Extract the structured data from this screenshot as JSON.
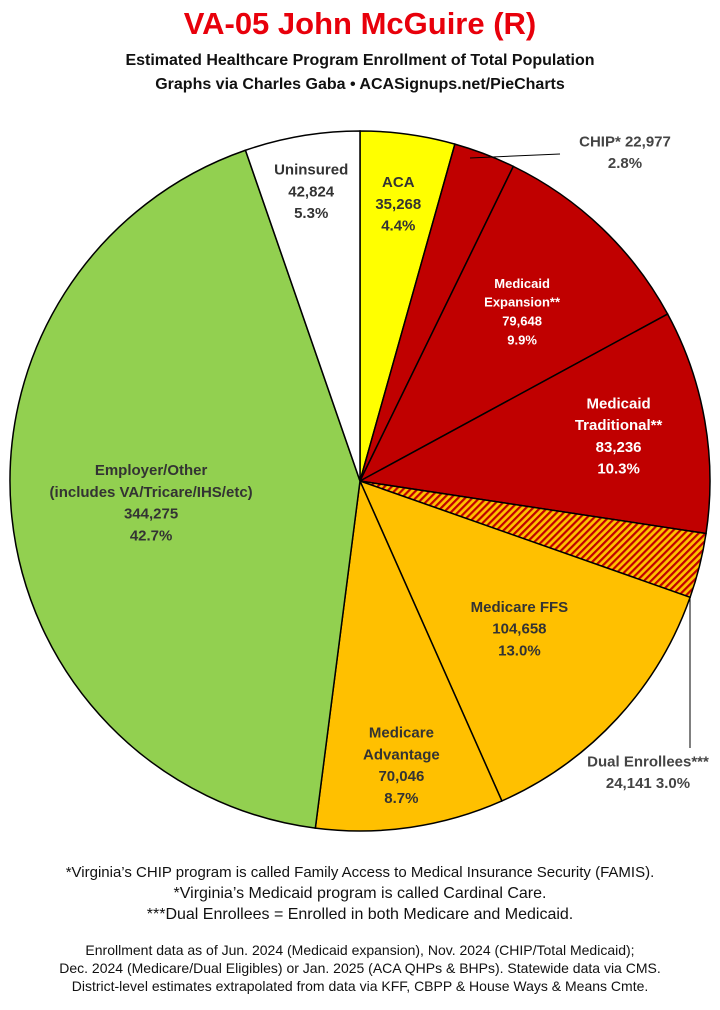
{
  "title": "VA-05 John McGuire (R)",
  "subtitle_line1": "Estimated Healthcare Program Enrollment of Total Population",
  "subtitle_line2": "Graphs via Charles Gaba  •  ACASignups.net/PieCharts",
  "chart_data": {
    "type": "pie",
    "slices": [
      {
        "label": "ACA",
        "value": 35268,
        "value_text": "35,268",
        "percent": "4.4%",
        "color": "#ffff00"
      },
      {
        "label": "CHIP*",
        "value": 22977,
        "value_text": "22,977",
        "percent": "2.8%",
        "color": "#c00000"
      },
      {
        "label": "Medicaid Expansion**",
        "label_lines": [
          "Medicaid",
          "Expansion**"
        ],
        "value": 79648,
        "value_text": "79,648",
        "percent": "9.9%",
        "color": "#c00000"
      },
      {
        "label": "Medicaid Traditional**",
        "label_lines": [
          "Medicaid",
          "Traditional**"
        ],
        "value": 83236,
        "value_text": "83,236",
        "percent": "10.3%",
        "color": "#c00000"
      },
      {
        "label": "Dual Enrollees***",
        "value": 24141,
        "value_text": "24,141",
        "percent": "3.0%",
        "color": "hatched"
      },
      {
        "label": "Medicare FFS",
        "value": 104658,
        "value_text": "104,658",
        "percent": "13.0%",
        "color": "#ffc000"
      },
      {
        "label": "Medicare Advantage",
        "label_lines": [
          "Medicare",
          "Advantage"
        ],
        "value": 70046,
        "value_text": "70,046",
        "percent": "8.7%",
        "color": "#ffc000"
      },
      {
        "label": "Employer/Other (includes VA/Tricare/IHS/etc)",
        "label_lines": [
          "Employer/Other",
          "(includes VA/Tricare/IHS/etc)"
        ],
        "value": 344275,
        "value_text": "344,275",
        "percent": "42.7%",
        "color": "#92d050"
      },
      {
        "label": "Uninsured",
        "value": 42824,
        "value_text": "42,824",
        "percent": "5.3%",
        "color": "#ffffff"
      }
    ]
  },
  "footnotes": {
    "chip": "*Virginia’s CHIP program is called Family Access to Medical Insurance Security (FAMIS).",
    "medicaid": "*Virginia’s Medicaid program is called Cardinal Care.",
    "dual": "***Dual Enrollees = Enrolled in both Medicare and Medicaid.",
    "source_line1": "Enrollment data as of Jun. 2024 (Medicaid expansion), Nov. 2024 (CHIP/Total Medicaid);",
    "source_line2": "Dec. 2024 (Medicare/Dual Eligibles) or Jan. 2025 (ACA QHPs & BHPs). Statewide data via CMS.",
    "source_line3": "District-level estimates extrapolated from data via KFF, CBPP & House Ways & Means Cmte."
  }
}
